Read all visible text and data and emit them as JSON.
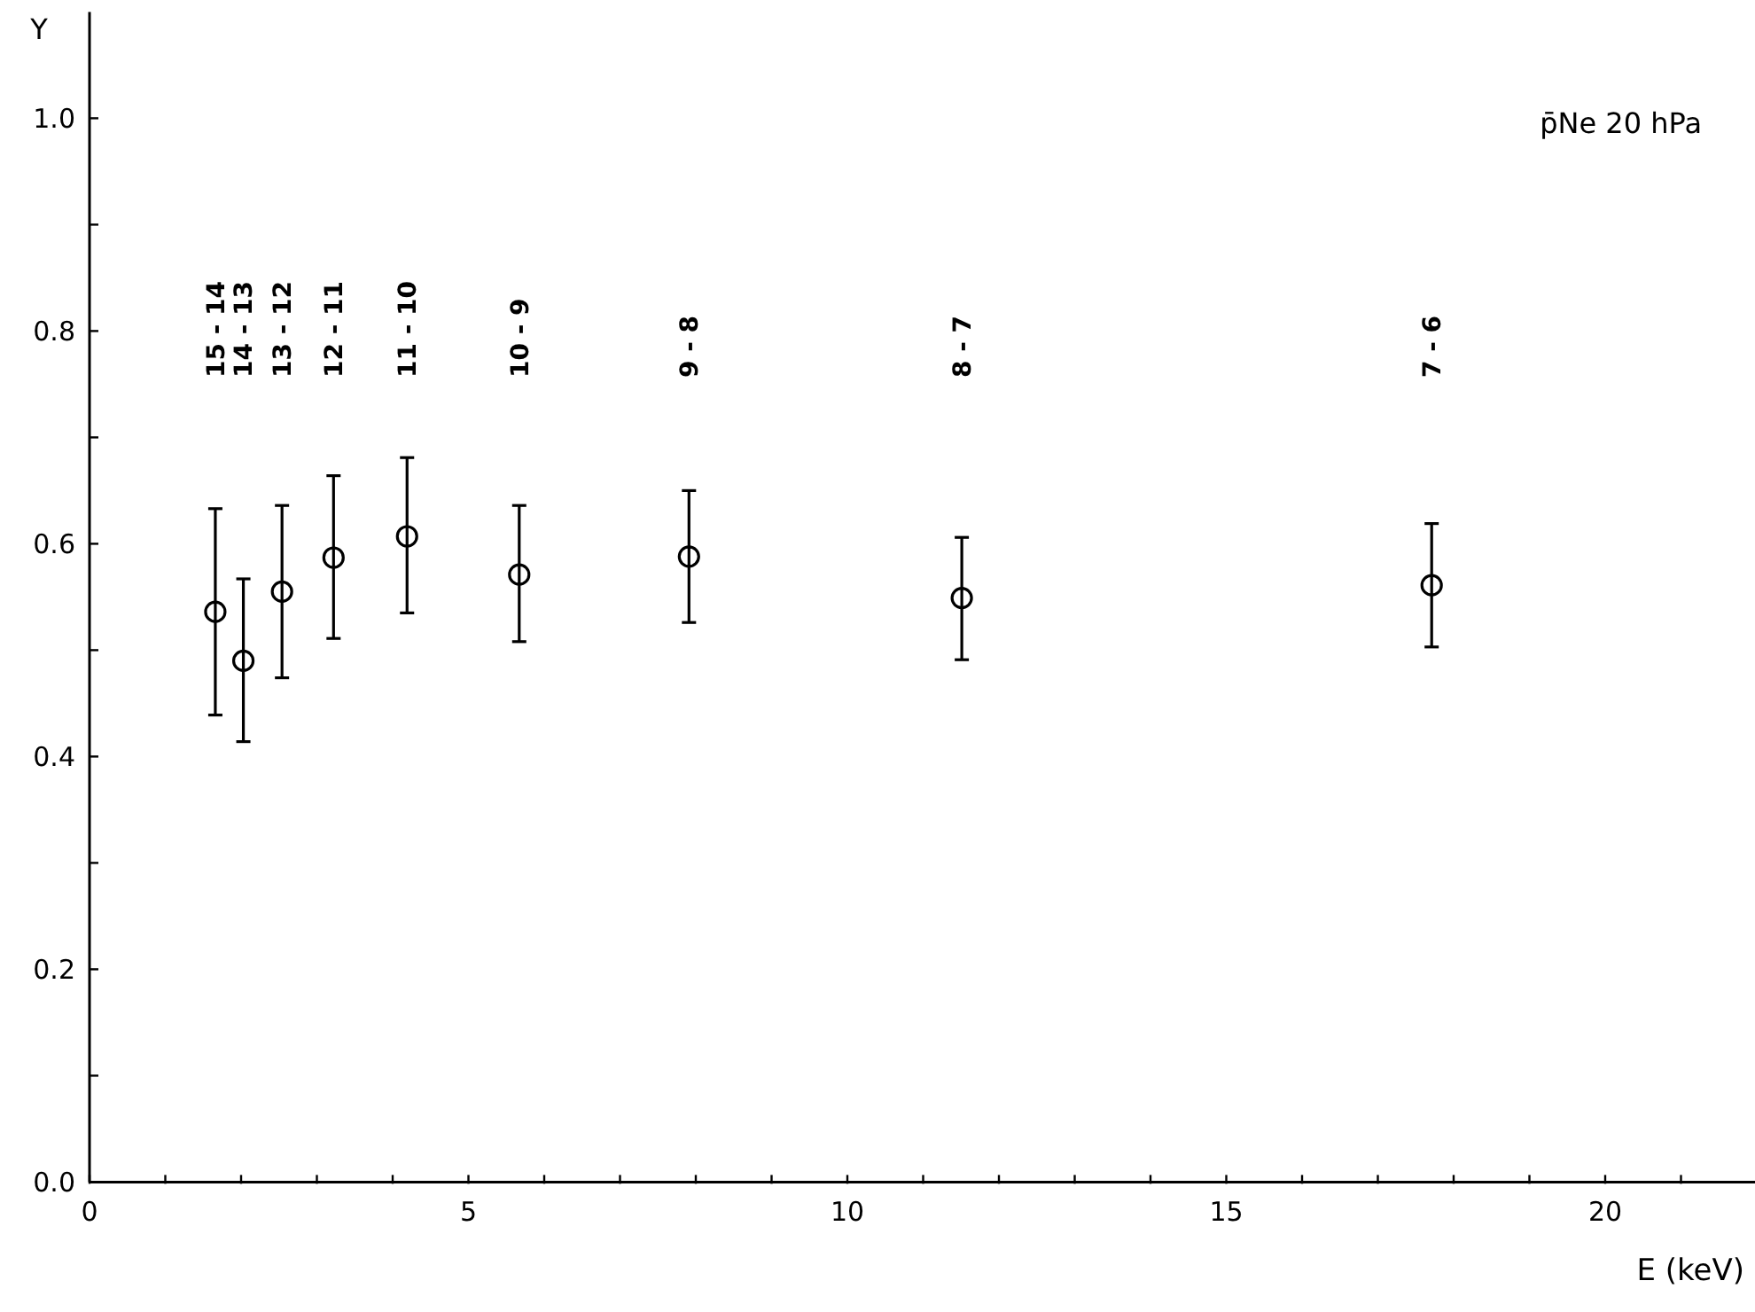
{
  "chart_data": {
    "type": "scatter",
    "xlabel": "E (keV)",
    "ylabel": "Y",
    "marker": "circle",
    "grid": false,
    "x": [
      1.66,
      2.03,
      2.54,
      3.22,
      4.19,
      5.67,
      7.91,
      11.51,
      17.71
    ],
    "series": [
      {
        "color": "#000000",
        "values": [
          0.536,
          0.49,
          0.555,
          0.587,
          0.607,
          0.571,
          0.588,
          0.549,
          0.561
        ],
        "errors": [
          [
            0.439,
            0.633
          ],
          [
            0.414,
            0.567
          ],
          [
            0.474,
            0.636
          ],
          [
            0.511,
            0.664
          ],
          [
            0.535,
            0.681
          ],
          [
            0.508,
            0.636
          ],
          [
            0.526,
            0.65
          ],
          [
            0.491,
            0.606
          ],
          [
            0.503,
            0.619
          ]
        ]
      }
    ],
    "xlim": [
      0,
      22
    ],
    "ylim": [
      0,
      1.1
    ],
    "xticks": [
      0,
      {
        "value": 1,
        "label": null
      },
      {
        "value": 2,
        "label": null
      },
      {
        "value": 3,
        "label": null
      },
      {
        "value": 4,
        "label": null
      },
      5,
      {
        "value": 6,
        "label": null
      },
      {
        "value": 7,
        "label": null
      },
      {
        "value": 8,
        "label": null
      },
      {
        "value": 9,
        "label": null
      },
      10,
      {
        "value": 11,
        "label": null
      },
      {
        "value": 12,
        "label": null
      },
      {
        "value": 13,
        "label": null
      },
      {
        "value": 14,
        "label": null
      },
      15,
      {
        "value": 16,
        "label": null
      },
      {
        "value": 17,
        "label": null
      },
      {
        "value": 18,
        "label": null
      },
      {
        "value": 19,
        "label": null
      },
      20,
      {
        "value": 21,
        "label": null
      }
    ],
    "yticks": [
      {
        "value": 0,
        "label": "0.0"
      },
      {
        "value": 0.1,
        "label": null
      },
      {
        "value": 0.2,
        "label": "0.2"
      },
      {
        "value": 0.3,
        "label": null
      },
      {
        "value": 0.4,
        "label": "0.4"
      },
      {
        "value": 0.5,
        "label": null
      },
      {
        "value": 0.6,
        "label": "0.6"
      },
      {
        "value": 0.7,
        "label": null
      },
      {
        "value": 0.8,
        "label": "0.8"
      },
      {
        "value": 0.9,
        "label": null
      },
      {
        "value": 1.0,
        "label": "1.0"
      }
    ],
    "annotations": [
      "p̄Ne 20 hPa",
      "15 - 14",
      "14 - 13",
      "13 - 12",
      "12 - 11",
      "11 - 10",
      "10 - 9",
      "9 - 8",
      "8 - 7",
      "7 - 6"
    ]
  }
}
